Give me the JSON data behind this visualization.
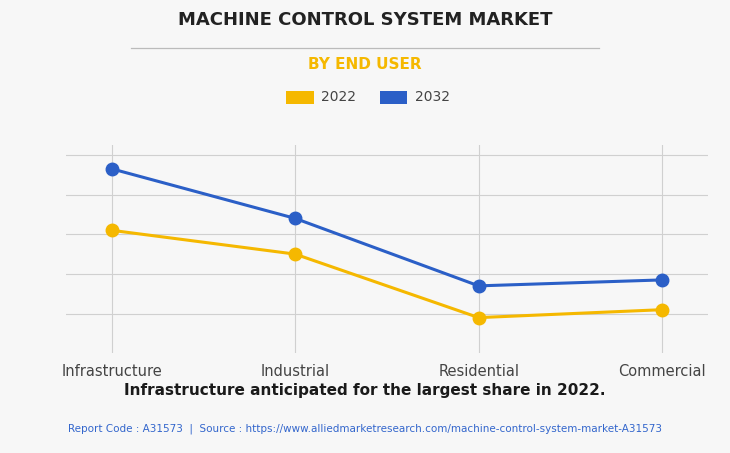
{
  "title": "MACHINE CONTROL SYSTEM MARKET",
  "subtitle": "BY END USER",
  "categories": [
    "Infrastructure",
    "Industrial",
    "Residential",
    "Commercial"
  ],
  "series": [
    {
      "label": "2022",
      "color": "#F5B800",
      "values": [
        62,
        50,
        18,
        22
      ]
    },
    {
      "label": "2032",
      "color": "#2B5FC7",
      "values": [
        93,
        68,
        34,
        37
      ]
    }
  ],
  "ylim": [
    0,
    105
  ],
  "footer_bold": "Infrastructure anticipated for the largest share in 2022.",
  "footer_source": "Report Code : A31573  |  Source : https://www.alliedmarketresearch.com/machine-control-system-market-A31573",
  "background_color": "#f7f7f7",
  "plot_background": "#f7f7f7",
  "title_color": "#222222",
  "subtitle_color": "#F5B800",
  "footer_source_color": "#3366CC",
  "grid_color": "#d0d0d0",
  "marker_size": 9,
  "line_width": 2.2
}
